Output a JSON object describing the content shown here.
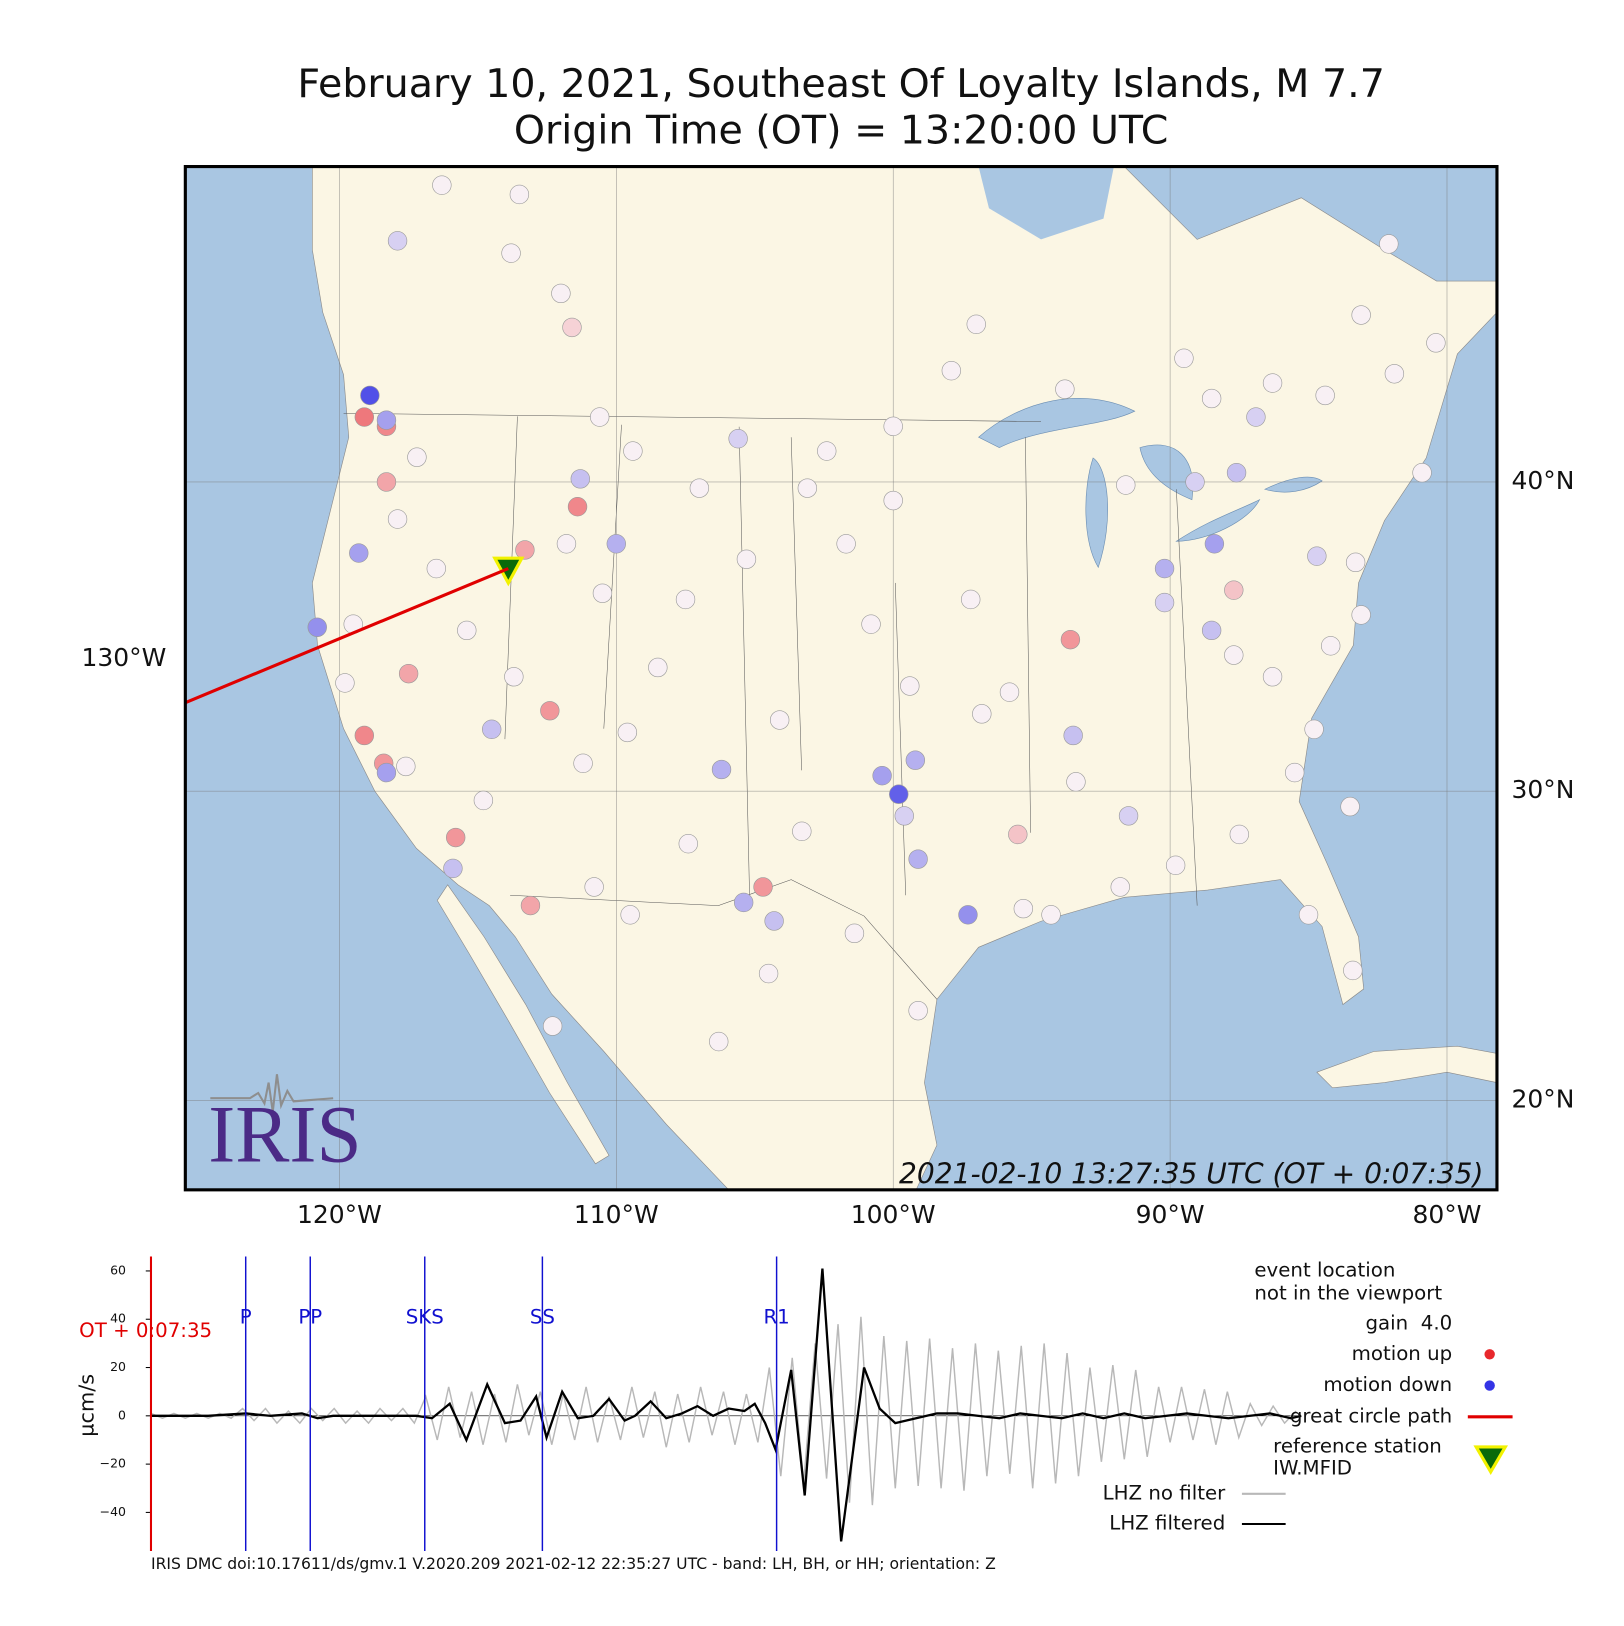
{
  "title": [
    "February 10, 2021, Southeast Of Loyalty Islands, M 7.7",
    "Origin Time (OT) = 13:20:00 UTC"
  ],
  "map": {
    "lon_ticks": [
      {
        "value": -120,
        "label": "120°W"
      },
      {
        "value": -110,
        "label": "110°W"
      },
      {
        "value": -100,
        "label": "100°W"
      },
      {
        "value": -90,
        "label": "90°W"
      },
      {
        "value": -80,
        "label": "80°W"
      }
    ],
    "lat_ticks": [
      {
        "value": 40,
        "label": "40°N"
      },
      {
        "value": 30,
        "label": "30°N"
      },
      {
        "value": 20,
        "label": "20°N"
      }
    ],
    "edge_tick": {
      "value": -130,
      "label": "130°W"
    },
    "timestamp": "2021-02-10 13:27:35 UTC (OT + 0:07:35)",
    "logo": "IRIS",
    "reference_station": {
      "lon": -113.9,
      "lat": 37.2
    },
    "stations": [
      [
        -118.9,
        42.8,
        -1
      ],
      [
        -119.1,
        42.1,
        0.8
      ],
      [
        -118.3,
        41.8,
        0.7
      ],
      [
        -118.3,
        42.0,
        -0.5
      ],
      [
        -118.3,
        40.0,
        0.5
      ],
      [
        -119.3,
        37.7,
        -0.5
      ],
      [
        -113.3,
        37.8,
        0.5
      ],
      [
        -111.4,
        39.2,
        0.7
      ],
      [
        -111.3,
        40.1,
        -0.3
      ],
      [
        -110.0,
        38.0,
        -0.4
      ],
      [
        -105.6,
        41.4,
        -0.2
      ],
      [
        -117.9,
        47.8,
        -0.2
      ],
      [
        -111.6,
        45.0,
        0.2
      ],
      [
        -120.8,
        35.3,
        -0.6
      ],
      [
        -117.5,
        33.8,
        0.5
      ],
      [
        -112.4,
        32.6,
        0.6
      ],
      [
        -119.1,
        31.8,
        0.7
      ],
      [
        -118.4,
        30.9,
        0.6
      ],
      [
        -118.3,
        30.6,
        -0.5
      ],
      [
        -114.5,
        32.0,
        -0.3
      ],
      [
        -115.8,
        28.5,
        0.6
      ],
      [
        -113.1,
        26.3,
        0.5
      ],
      [
        -115.9,
        27.5,
        -0.3
      ],
      [
        -106.2,
        30.7,
        -0.4
      ],
      [
        -99.8,
        29.9,
        -0.9
      ],
      [
        -100.4,
        30.5,
        -0.5
      ],
      [
        -99.2,
        31.0,
        -0.4
      ],
      [
        -99.6,
        29.2,
        -0.2
      ],
      [
        -99.1,
        27.8,
        -0.4
      ],
      [
        -104.7,
        26.9,
        0.6
      ],
      [
        -105.4,
        26.4,
        -0.4
      ],
      [
        -104.3,
        25.8,
        -0.3
      ],
      [
        -97.3,
        26.0,
        -0.6
      ],
      [
        -95.5,
        28.6,
        0.3
      ],
      [
        -93.6,
        34.9,
        0.6
      ],
      [
        -93.5,
        31.8,
        -0.3
      ],
      [
        -91.5,
        29.2,
        -0.2
      ],
      [
        -90.2,
        37.2,
        -0.4
      ],
      [
        -88.4,
        38.0,
        -0.5
      ],
      [
        -87.6,
        40.3,
        -0.3
      ],
      [
        -87.7,
        36.5,
        0.3
      ],
      [
        -88.5,
        35.2,
        -0.3
      ],
      [
        -86.9,
        42.1,
        -0.2
      ],
      [
        -84.7,
        37.6,
        -0.2
      ],
      [
        -90.2,
        36.1,
        -0.2
      ],
      [
        -89.1,
        40.0,
        -0.2
      ],
      [
        -116.3,
        49.6,
        0
      ],
      [
        -113.5,
        49.3,
        0
      ],
      [
        -113.8,
        47.4,
        0
      ],
      [
        -112.0,
        46.1,
        0
      ],
      [
        -110.6,
        42.1,
        0
      ],
      [
        -109.4,
        41.0,
        0
      ],
      [
        -107.0,
        39.8,
        0
      ],
      [
        -103.1,
        39.8,
        0
      ],
      [
        -102.4,
        41.0,
        0
      ],
      [
        -100.0,
        39.4,
        0
      ],
      [
        -100.0,
        41.8,
        0
      ],
      [
        -97.0,
        45.1,
        0
      ],
      [
        -97.9,
        43.6,
        0
      ],
      [
        -93.8,
        43.0,
        0
      ],
      [
        -89.5,
        44.0,
        0
      ],
      [
        -88.5,
        42.7,
        0
      ],
      [
        -86.3,
        43.2,
        0
      ],
      [
        -84.4,
        42.8,
        0
      ],
      [
        -83.1,
        45.4,
        0
      ],
      [
        -82.1,
        47.7,
        0
      ],
      [
        -80.4,
        44.5,
        0
      ],
      [
        -80.9,
        40.3,
        0
      ],
      [
        -83.3,
        37.4,
        0
      ],
      [
        -83.1,
        35.7,
        0
      ],
      [
        -84.2,
        34.7,
        0
      ],
      [
        -84.8,
        32.0,
        0
      ],
      [
        -85.5,
        30.6,
        0
      ],
      [
        -83.5,
        29.5,
        0
      ],
      [
        -85.0,
        26.0,
        0
      ],
      [
        -83.4,
        24.2,
        0
      ],
      [
        -87.5,
        28.6,
        0
      ],
      [
        -89.8,
        27.6,
        0
      ],
      [
        -91.8,
        26.9,
        0
      ],
      [
        -95.3,
        26.2,
        0
      ],
      [
        -99.1,
        22.9,
        0
      ],
      [
        -101.4,
        25.4,
        0
      ],
      [
        -104.5,
        24.1,
        0
      ],
      [
        -106.3,
        21.9,
        0
      ],
      [
        -112.3,
        22.4,
        0
      ],
      [
        -109.5,
        26.0,
        0
      ],
      [
        -110.8,
        26.9,
        0
      ],
      [
        -107.4,
        28.3,
        0
      ],
      [
        -107.5,
        36.2,
        0
      ],
      [
        -105.3,
        37.5,
        0
      ],
      [
        -101.7,
        38.0,
        0
      ],
      [
        -100.8,
        35.4,
        0
      ],
      [
        -97.2,
        36.2,
        0
      ],
      [
        -96.8,
        32.5,
        0
      ],
      [
        -99.4,
        33.4,
        0
      ],
      [
        -95.8,
        33.2,
        0
      ],
      [
        -91.6,
        39.9,
        0
      ],
      [
        -87.7,
        34.4,
        0
      ],
      [
        -86.3,
        33.7,
        0
      ],
      [
        -104.1,
        32.3,
        0
      ],
      [
        -108.5,
        34.0,
        0
      ],
      [
        -109.6,
        31.9,
        0
      ],
      [
        -111.2,
        30.9,
        0
      ],
      [
        -114.8,
        29.7,
        0
      ],
      [
        -113.7,
        33.7,
        0
      ],
      [
        -115.4,
        35.2,
        0
      ],
      [
        -116.5,
        37.2,
        0
      ],
      [
        -117.2,
        40.8,
        0
      ],
      [
        -119.8,
        33.5,
        0
      ],
      [
        -117.6,
        30.8,
        0
      ],
      [
        -119.5,
        35.4,
        0
      ],
      [
        -117.9,
        38.8,
        0
      ],
      [
        -111.8,
        38.0,
        0
      ],
      [
        -110.5,
        36.4,
        0
      ],
      [
        -103.3,
        28.7,
        0
      ],
      [
        -93.4,
        30.3,
        0
      ],
      [
        -94.3,
        26.0,
        0
      ],
      [
        -81.9,
        43.5,
        0
      ]
    ]
  },
  "seismogram": {
    "ylabel": "µcm/s",
    "ylim": [
      -56,
      66
    ],
    "yticks": [
      60,
      40,
      20,
      0,
      {
        "value": -20,
        "label": "−20"
      },
      {
        "value": -40,
        "label": "−40"
      }
    ],
    "xlim": [
      0,
      1105
    ],
    "ot_label": "OT + 0:07:35",
    "phases": [
      {
        "name": "P",
        "time": 91
      },
      {
        "name": "PP",
        "time": 153
      },
      {
        "name": "SKS",
        "time": 263
      },
      {
        "name": "SS",
        "time": 376
      },
      {
        "name": "R1",
        "time": 601
      }
    ],
    "series": [
      {
        "name": "LHZ no filter",
        "color": "#b8b8b8",
        "x": [
          0,
          11,
          22,
          33,
          44,
          55,
          66,
          77,
          88,
          99,
          110,
          121,
          132,
          143,
          154,
          165,
          176,
          187,
          198,
          209,
          220,
          231,
          242,
          253,
          264,
          275,
          286,
          297,
          308,
          319,
          330,
          341,
          352,
          363,
          374,
          385,
          396,
          407,
          418,
          429,
          440,
          451,
          462,
          473,
          484,
          495,
          506,
          517,
          528,
          539,
          550,
          561,
          572,
          583,
          594,
          605,
          616,
          627,
          638,
          649,
          660,
          671,
          682,
          693,
          704,
          715,
          726,
          737,
          748,
          759,
          770,
          781,
          792,
          803,
          814,
          825,
          836,
          847,
          858,
          869,
          880,
          891,
          902,
          913,
          924,
          935,
          946,
          957,
          968,
          979,
          990,
          1001,
          1012,
          1023,
          1034,
          1045,
          1056,
          1067,
          1078,
          1089,
          1100
        ],
        "values": [
          1,
          -1,
          1,
          -1,
          1,
          -1,
          1,
          -1,
          3,
          -2,
          3,
          -3,
          2,
          -3,
          3,
          -2,
          3,
          -3,
          2,
          -3,
          3,
          -2,
          3,
          -3,
          8,
          -10,
          12,
          -9,
          10,
          -12,
          9,
          -11,
          13,
          -8,
          10,
          -12,
          9,
          -10,
          12,
          -11,
          8,
          -10,
          12,
          -9,
          10,
          -13,
          9,
          -11,
          12,
          -8,
          10,
          -12,
          9,
          -11,
          20,
          -25,
          24,
          -28,
          30,
          -26,
          38,
          -36,
          41,
          -37,
          33,
          -30,
          31,
          -29,
          32,
          -30,
          28,
          -31,
          30,
          -25,
          27,
          -24,
          29,
          -30,
          30,
          -28,
          26,
          -25,
          20,
          -19,
          21,
          -18,
          19,
          -17,
          12,
          -11,
          12,
          -10,
          11,
          -12,
          10,
          -9,
          5,
          -4,
          4,
          -3,
          2
        ]
      },
      {
        "name": "LHZ filtered",
        "color": "#000000",
        "x": [
          0,
          55,
          91,
          115,
          145,
          160,
          175,
          215,
          255,
          270,
          287,
          303,
          323,
          340,
          355,
          370,
          380,
          395,
          410,
          425,
          440,
          455,
          465,
          480,
          495,
          510,
          525,
          540,
          555,
          570,
          580,
          590,
          600,
          615,
          628,
          645,
          663,
          685,
          700,
          715,
          735,
          755,
          775,
          795,
          815,
          835,
          855,
          875,
          895,
          915,
          935,
          955,
          975,
          995,
          1015,
          1035,
          1055,
          1075,
          1095,
          1105
        ],
        "values": [
          0,
          0,
          1,
          0,
          1,
          -1,
          0,
          0,
          0,
          -1,
          5,
          -10,
          13,
          -3,
          -2,
          8,
          -9,
          10,
          -1,
          0,
          7,
          -2,
          0,
          6,
          -1,
          1,
          4,
          0,
          3,
          2,
          5,
          -3,
          -14,
          19,
          -33,
          61,
          -52,
          20,
          3,
          -3,
          -1,
          1,
          1,
          0,
          -1,
          1,
          0,
          -1,
          1,
          -1,
          1,
          -1,
          0,
          1,
          0,
          -1,
          0,
          1,
          -1,
          0
        ]
      }
    ]
  },
  "legend": {
    "event_note": [
      "event location",
      "not in the viewport"
    ],
    "gain": "gain  4.0",
    "items": [
      {
        "label": "motion up",
        "color": "#e8282c"
      },
      {
        "label": "motion down",
        "color": "#3434e6"
      },
      {
        "label": "great circle path",
        "color": "#e00000"
      }
    ],
    "reference": [
      "reference station",
      "IW.MFID"
    ]
  },
  "footer": "IRIS DMC doi:10.17611/ds/gmv.1 V.2020.209 2021-02-12 22:35:27 UTC - band: LH, BH, or HH; orientation: Z"
}
